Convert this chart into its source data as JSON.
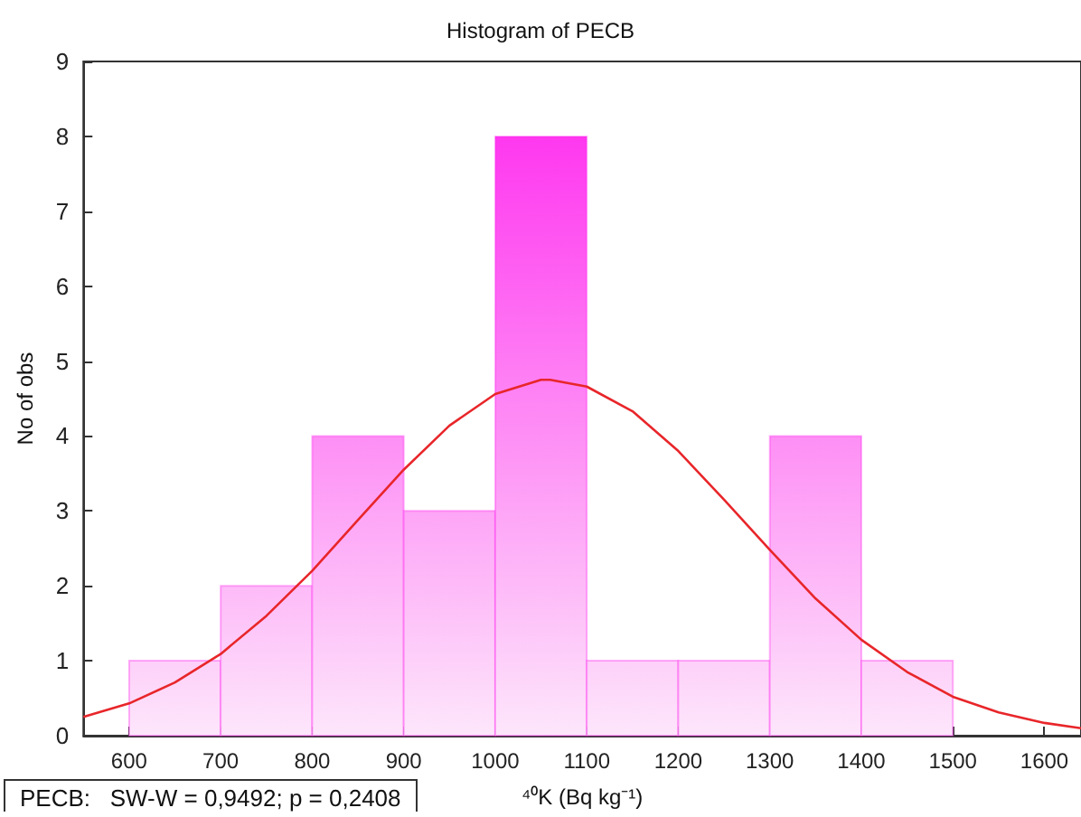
{
  "chart_data": {
    "type": "histogram",
    "title": "Histogram of PECB",
    "xlabel": "⁴⁰K (Bq kg⁻¹)",
    "ylabel": "No of obs",
    "bins": [
      600,
      700,
      800,
      900,
      1000,
      1100,
      1200,
      1300,
      1400,
      1500
    ],
    "values": [
      1,
      2,
      4,
      3,
      8,
      1,
      1,
      4,
      1
    ],
    "color": "#ff22ee",
    "series": [
      {
        "type": "line",
        "color": "#e8262a",
        "marker": "none",
        "x": [
          550,
          600,
          650,
          700,
          750,
          800,
          850,
          900,
          950,
          1000,
          1050,
          1060,
          1100,
          1150,
          1200,
          1250,
          1300,
          1350,
          1400,
          1450,
          1500,
          1550,
          1600,
          1640
        ],
        "values": [
          0.25,
          0.43,
          0.71,
          1.09,
          1.6,
          2.2,
          2.88,
          3.55,
          4.14,
          4.56,
          4.75,
          4.75,
          4.66,
          4.33,
          3.8,
          3.15,
          2.48,
          1.83,
          1.28,
          0.85,
          0.52,
          0.31,
          0.17,
          0.1
        ]
      }
    ],
    "annotations": [
      "PECB:   SW-W = 0,9492; p = 0,2408"
    ],
    "xlim": [
      550,
      1640
    ],
    "xticks": [
      600,
      700,
      800,
      900,
      1000,
      1100,
      1200,
      1300,
      1400,
      1500,
      1600
    ],
    "ylim": [
      0,
      9
    ],
    "yticks": [
      0,
      1,
      2,
      3,
      4,
      5,
      6,
      7,
      8,
      9
    ],
    "grid": false,
    "legend": false
  }
}
